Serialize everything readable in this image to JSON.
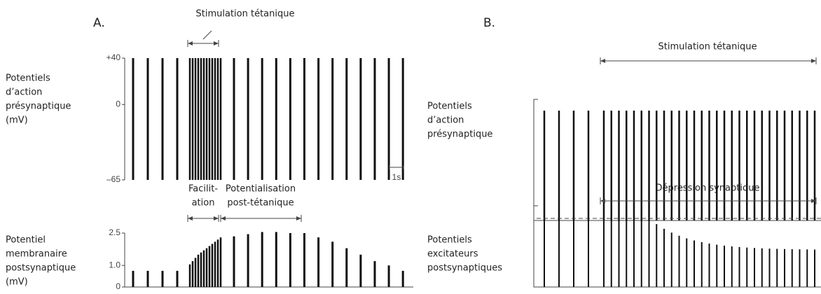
{
  "panel_a": {
    "label": "A.",
    "stimulation_label": "Stimulation tétanique",
    "presynaptic_label": [
      "Potentiels",
      "d’action",
      "présynaptique",
      "(mV)"
    ],
    "presynaptic_ylim": [
      -65,
      40
    ],
    "presynaptic_yticks": [
      {
        "value": 40,
        "label": "+40"
      },
      0,
      {
        "value": -65,
        "label": "–65"
      }
    ],
    "time_scale_label": "1s",
    "facilitation_label": [
      "Facilit-",
      "ation"
    ],
    "potentiation_label": [
      "Potentialisation",
      "post-tétanique"
    ],
    "postsynaptic_label": [
      "Potentiel",
      "membranaire",
      "postsynaptique",
      "(mV)"
    ],
    "postsynaptic_ylim": [
      0,
      2.5
    ],
    "postsynaptic_yticks": [
      2.5,
      {
        "value": 1,
        "label": "1.0"
      },
      0
    ],
    "postsynaptic_amplitudes": [
      0.75,
      0.75,
      0.75,
      0.75,
      1.05,
      1.2,
      1.35,
      1.5,
      1.6,
      1.7,
      1.8,
      1.9,
      2.0,
      2.1,
      2.2,
      2.3,
      2.35,
      2.45,
      2.55,
      2.55,
      2.5,
      2.5,
      2.3,
      2.1,
      1.8,
      1.5,
      1.2,
      1.0,
      0.75
    ]
  },
  "panel_b": {
    "label": "B.",
    "stimulation_label": "Stimulation tétanique",
    "presynaptic_label": [
      "Potentiels",
      "d’action",
      "présynaptique"
    ],
    "depression_label": "Dépression synaptique",
    "postsynaptic_label": [
      "Potentiels",
      "excitateurs",
      "postsynaptiques"
    ]
  }
}
